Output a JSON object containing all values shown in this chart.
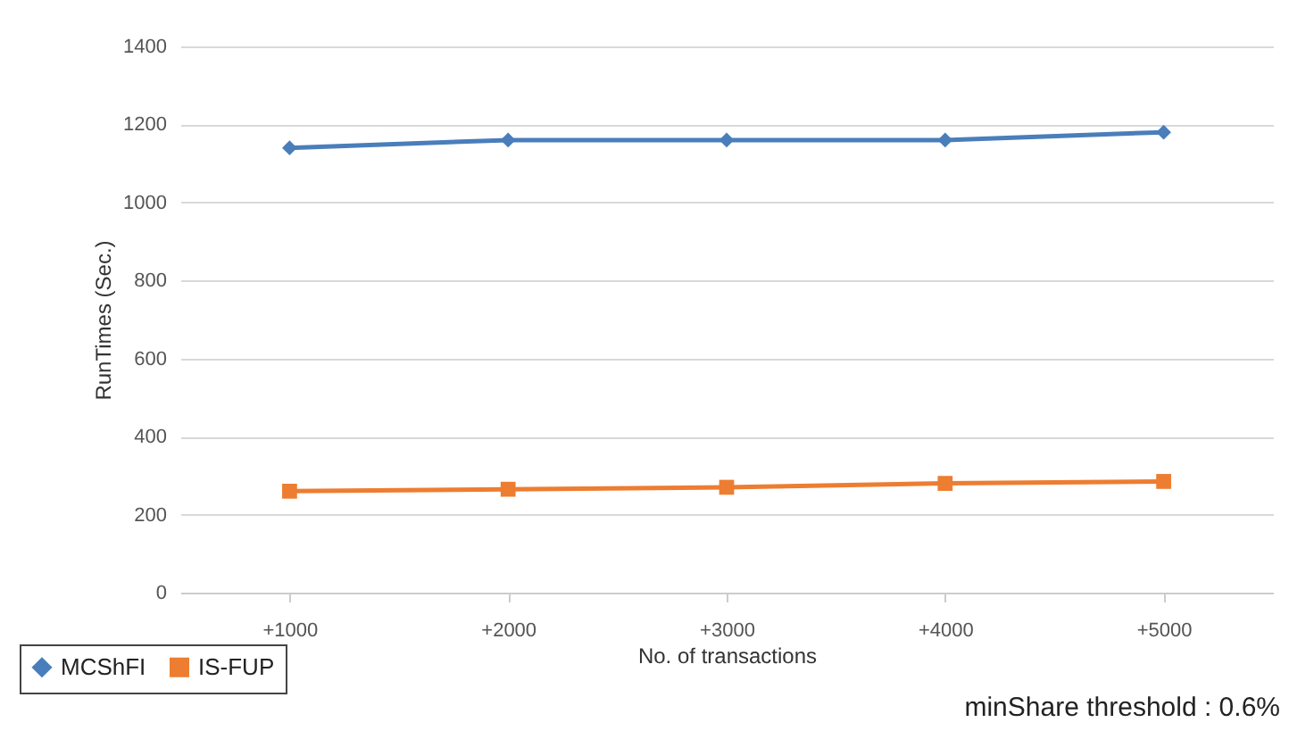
{
  "chart_data": {
    "type": "line",
    "xlabel": "No. of transactions",
    "ylabel": "RunTimes (Sec.)",
    "categories": [
      "+1000",
      "+2000",
      "+3000",
      "+4000",
      "+5000"
    ],
    "series": [
      {
        "name": "MCShFI",
        "color": "#4a7ebb",
        "values": [
          1140,
          1160,
          1160,
          1160,
          1180
        ],
        "marker": "diamond"
      },
      {
        "name": "IS-FUP",
        "color": "#ed7d31",
        "values": [
          260,
          265,
          270,
          280,
          285
        ],
        "marker": "square"
      }
    ],
    "ylim": [
      0,
      1400
    ],
    "yticks": [
      0,
      200,
      400,
      600,
      800,
      1000,
      1200,
      1400
    ],
    "grid": "y",
    "legend": "bottom left",
    "annotations": [
      "minShare threshold : 0.6%"
    ]
  }
}
